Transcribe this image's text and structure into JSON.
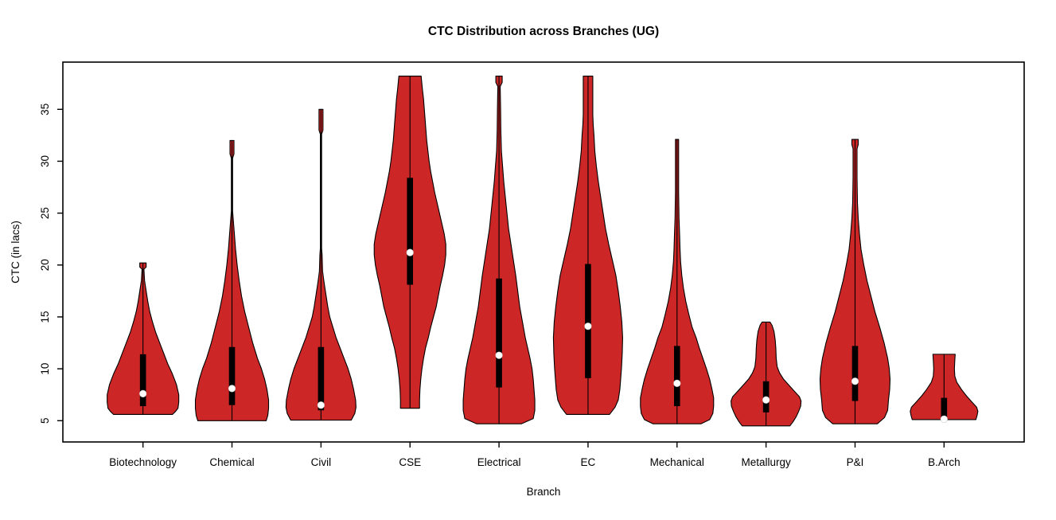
{
  "title": "CTC Distribution across Branches (UG)",
  "chart_data": {
    "type": "violin",
    "title": "CTC Distribution across Branches (UG)",
    "xlabel": "Branch",
    "ylabel": "CTC (in lacs)",
    "yticks": [
      5,
      10,
      15,
      20,
      25,
      30,
      35
    ],
    "y_range": [
      2.95,
      39.55
    ],
    "x_range": [
      0.1,
      10.9
    ],
    "grid": false,
    "legend": "none",
    "colors": {
      "violin_fill": "#CC2626",
      "outline": "#000000",
      "box": "#000000",
      "median_dot": "#ffffff",
      "background": "#ffffff"
    },
    "categories": [
      "Biotechnology",
      "Chemical",
      "Civil",
      "CSE",
      "Electrical",
      "EC",
      "Mechanical",
      "Metallurgy",
      "P&I",
      "B.Arch"
    ],
    "violins": [
      {
        "name": "Biotechnology",
        "pos": 1,
        "min": 5.6,
        "max": 20.2,
        "q1": 6.4,
        "q3": 11.4,
        "median": 7.6,
        "profile": [
          [
            20.2,
            4
          ],
          [
            19.8,
            4
          ],
          [
            19.6,
            1.2
          ],
          [
            18.5,
            2
          ],
          [
            17.5,
            4
          ],
          [
            16.5,
            6
          ],
          [
            15.5,
            8.5
          ],
          [
            14.5,
            12
          ],
          [
            13.5,
            16
          ],
          [
            12.5,
            21
          ],
          [
            11.5,
            26
          ],
          [
            10.5,
            31
          ],
          [
            9.5,
            37
          ],
          [
            8.5,
            42
          ],
          [
            7.5,
            45
          ],
          [
            6.8,
            45
          ],
          [
            6.2,
            44
          ],
          [
            5.9,
            41
          ],
          [
            5.6,
            37
          ]
        ]
      },
      {
        "name": "Chemical",
        "pos": 2,
        "min": 5.0,
        "max": 32.0,
        "q1": 6.5,
        "q3": 12.1,
        "median": 8.1,
        "profile": [
          [
            32,
            2.5
          ],
          [
            30.7,
            2.5
          ],
          [
            30.3,
            0.8
          ],
          [
            25.2,
            0.8
          ],
          [
            24.5,
            1.5
          ],
          [
            23,
            3
          ],
          [
            21.5,
            4.5
          ],
          [
            20,
            6.5
          ],
          [
            18.5,
            9
          ],
          [
            17,
            12
          ],
          [
            15.5,
            16
          ],
          [
            14,
            21
          ],
          [
            12.5,
            26
          ],
          [
            11,
            32
          ],
          [
            10,
            37
          ],
          [
            9,
            41
          ],
          [
            8,
            44
          ],
          [
            7,
            46
          ],
          [
            6.2,
            46
          ],
          [
            5.5,
            45
          ],
          [
            5,
            43
          ]
        ]
      },
      {
        "name": "Civil",
        "pos": 3,
        "min": 5.05,
        "max": 35.0,
        "q1": 6.0,
        "q3": 12.1,
        "median": 6.5,
        "profile": [
          [
            35,
            2.5
          ],
          [
            33,
            2.5
          ],
          [
            32.6,
            0.8
          ],
          [
            21.6,
            0.8
          ],
          [
            21,
            1.4
          ],
          [
            19.4,
            2
          ],
          [
            18.8,
            3
          ],
          [
            18,
            4.5
          ],
          [
            17,
            6.5
          ],
          [
            16,
            8.5
          ],
          [
            15,
            11
          ],
          [
            14,
            15
          ],
          [
            13,
            19
          ],
          [
            12,
            24
          ],
          [
            11,
            29
          ],
          [
            10,
            34
          ],
          [
            9,
            38
          ],
          [
            8,
            41
          ],
          [
            7,
            43.5
          ],
          [
            6.3,
            44
          ],
          [
            5.7,
            42.5
          ],
          [
            5.05,
            38
          ]
        ]
      },
      {
        "name": "CSE",
        "pos": 4,
        "min": 6.2,
        "max": 38.2,
        "q1": 18.1,
        "q3": 28.4,
        "median": 21.2,
        "profile": [
          [
            38.2,
            14
          ],
          [
            37,
            15.5
          ],
          [
            36,
            17
          ],
          [
            35,
            18
          ],
          [
            34,
            19
          ],
          [
            33,
            20
          ],
          [
            32,
            21
          ],
          [
            31,
            22.5
          ],
          [
            30,
            24
          ],
          [
            29,
            26
          ],
          [
            28,
            28.5
          ],
          [
            27,
            31
          ],
          [
            26,
            34
          ],
          [
            25,
            37
          ],
          [
            24,
            40
          ],
          [
            23,
            43
          ],
          [
            22,
            45
          ],
          [
            21,
            45
          ],
          [
            20,
            43.5
          ],
          [
            19,
            41
          ],
          [
            18,
            38
          ],
          [
            17,
            35.5
          ],
          [
            16,
            33
          ],
          [
            15,
            29.5
          ],
          [
            14,
            26
          ],
          [
            13,
            23
          ],
          [
            12,
            19.5
          ],
          [
            11,
            17
          ],
          [
            10,
            15
          ],
          [
            9,
            13.5
          ],
          [
            8,
            12.5
          ],
          [
            7,
            12
          ],
          [
            6.2,
            12
          ]
        ]
      },
      {
        "name": "Electrical",
        "pos": 5,
        "min": 4.7,
        "max": 38.2,
        "q1": 8.2,
        "q3": 18.7,
        "median": 11.3,
        "profile": [
          [
            38.2,
            4
          ],
          [
            37.6,
            4
          ],
          [
            37.2,
            1.5
          ],
          [
            35,
            2
          ],
          [
            33,
            2.3
          ],
          [
            31,
            3
          ],
          [
            29.5,
            4.5
          ],
          [
            28,
            6
          ],
          [
            26.5,
            8
          ],
          [
            25,
            10
          ],
          [
            23.5,
            12
          ],
          [
            22,
            15
          ],
          [
            20.5,
            18
          ],
          [
            19,
            21
          ],
          [
            17.5,
            23.5
          ],
          [
            16,
            26
          ],
          [
            14.5,
            29.5
          ],
          [
            13,
            33
          ],
          [
            12,
            36
          ],
          [
            11,
            39
          ],
          [
            10,
            41.5
          ],
          [
            9,
            43
          ],
          [
            8,
            44
          ],
          [
            7,
            45
          ],
          [
            6,
            45
          ],
          [
            5.2,
            43
          ],
          [
            4.7,
            28
          ]
        ]
      },
      {
        "name": "EC",
        "pos": 6,
        "min": 5.6,
        "max": 38.2,
        "q1": 9.1,
        "q3": 20.1,
        "median": 14.1,
        "profile": [
          [
            38.2,
            6
          ],
          [
            36,
            6
          ],
          [
            34.5,
            6
          ],
          [
            33.5,
            6.5
          ],
          [
            32.5,
            7.5
          ],
          [
            31,
            8.5
          ],
          [
            29.5,
            10.5
          ],
          [
            28,
            13
          ],
          [
            26.5,
            16
          ],
          [
            25,
            19
          ],
          [
            23.5,
            22
          ],
          [
            22,
            26
          ],
          [
            20.5,
            30.5
          ],
          [
            19,
            35
          ],
          [
            17.5,
            38
          ],
          [
            16,
            40.5
          ],
          [
            14.5,
            42.5
          ],
          [
            13,
            43.5
          ],
          [
            11.5,
            43
          ],
          [
            10,
            42
          ],
          [
            9,
            41
          ],
          [
            8,
            40
          ],
          [
            7,
            38
          ],
          [
            6.3,
            34
          ],
          [
            5.9,
            30
          ],
          [
            5.6,
            27
          ]
        ]
      },
      {
        "name": "Mechanical",
        "pos": 7,
        "min": 4.7,
        "max": 32.1,
        "q1": 6.4,
        "q3": 12.2,
        "median": 8.6,
        "profile": [
          [
            32.1,
            2
          ],
          [
            30,
            2
          ],
          [
            27,
            2
          ],
          [
            24.5,
            2.5
          ],
          [
            23,
            3.2
          ],
          [
            21.5,
            3.8
          ],
          [
            20.3,
            4.5
          ],
          [
            19,
            6
          ],
          [
            17.8,
            8
          ],
          [
            16.5,
            11
          ],
          [
            15.2,
            15
          ],
          [
            14,
            19
          ],
          [
            13,
            24
          ],
          [
            12,
            28
          ],
          [
            11,
            32.5
          ],
          [
            10,
            37
          ],
          [
            9,
            41
          ],
          [
            8,
            44
          ],
          [
            7.2,
            46
          ],
          [
            6.4,
            46
          ],
          [
            5.7,
            45
          ],
          [
            5.1,
            41
          ],
          [
            4.7,
            30
          ]
        ]
      },
      {
        "name": "Metallurgy",
        "pos": 8,
        "min": 4.5,
        "max": 14.5,
        "q1": 5.8,
        "q3": 8.8,
        "median": 7.0,
        "profile": [
          [
            14.5,
            5
          ],
          [
            14.2,
            7.5
          ],
          [
            13.6,
            10
          ],
          [
            12.8,
            11.5
          ],
          [
            12,
            12.3
          ],
          [
            11,
            12.8
          ],
          [
            10.2,
            14
          ],
          [
            9.6,
            17
          ],
          [
            9,
            22
          ],
          [
            8.4,
            29
          ],
          [
            7.8,
            36
          ],
          [
            7.3,
            42
          ],
          [
            6.9,
            44
          ],
          [
            6.4,
            43.5
          ],
          [
            5.9,
            41
          ],
          [
            5.4,
            38
          ],
          [
            4.9,
            34
          ],
          [
            4.5,
            30
          ]
        ]
      },
      {
        "name": "P&I",
        "pos": 9,
        "min": 4.7,
        "max": 32.1,
        "q1": 6.9,
        "q3": 12.2,
        "median": 8.8,
        "profile": [
          [
            32.1,
            4
          ],
          [
            31.6,
            4
          ],
          [
            31.2,
            2.5
          ],
          [
            28.5,
            2.5
          ],
          [
            26,
            3
          ],
          [
            24.5,
            4
          ],
          [
            23,
            5.5
          ],
          [
            21.5,
            7.5
          ],
          [
            20,
            11
          ],
          [
            18.5,
            15
          ],
          [
            17,
            20
          ],
          [
            15.5,
            25
          ],
          [
            14,
            31
          ],
          [
            12.5,
            36.5
          ],
          [
            11,
            41
          ],
          [
            10,
            43
          ],
          [
            9,
            44
          ],
          [
            8,
            43.5
          ],
          [
            7,
            42
          ],
          [
            6,
            41
          ],
          [
            5.3,
            37
          ],
          [
            4.7,
            28
          ]
        ]
      },
      {
        "name": "B.Arch",
        "pos": 10,
        "min": 5.1,
        "max": 11.4,
        "q1": 5.3,
        "q3": 7.2,
        "median": 5.15,
        "profile": [
          [
            11.4,
            14
          ],
          [
            10.8,
            13.5
          ],
          [
            10,
            13
          ],
          [
            9.3,
            13.5
          ],
          [
            8.7,
            16
          ],
          [
            8,
            22
          ],
          [
            7.4,
            28
          ],
          [
            6.8,
            35
          ],
          [
            6.3,
            41
          ],
          [
            5.9,
            42.5
          ],
          [
            5.5,
            41.5
          ],
          [
            5.1,
            40
          ]
        ]
      }
    ]
  }
}
